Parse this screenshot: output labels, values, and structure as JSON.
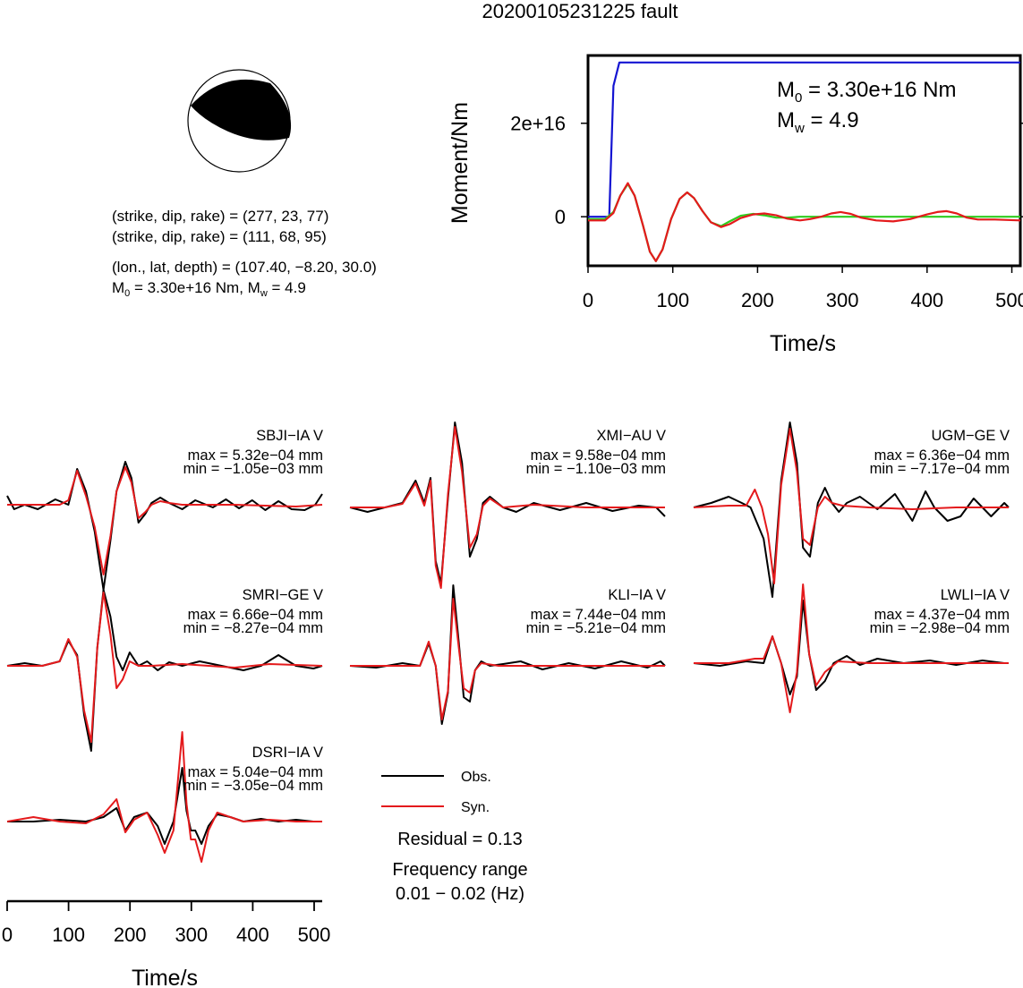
{
  "title": "20200105231225 fault",
  "source_params": {
    "nodal_plane_1": "(strike, dip, rake) = (277, 23, 77)",
    "nodal_plane_2": "(strike, dip, rake) = (111, 68, 95)",
    "location": "(lon., lat, depth) = (107.40, −8.20, 30.0)",
    "magnitude_prefix": "M",
    "magnitude_middle": " = 3.30e+16 Nm, M",
    "magnitude_suffix": " = 4.9",
    "sub_0": "0",
    "sub_w": "w"
  },
  "moment_panel": {
    "m0_text": " = 3.30e+16 Nm",
    "mw_text": " = 4.9",
    "m_letter": "M",
    "sub_0": "0",
    "sub_w": "w"
  },
  "colors": {
    "observed": "#000000",
    "synthetic": "#e41a1c",
    "moment_function": "#1414d2",
    "source_time_function": "#2ecc1e"
  },
  "chart_data": [
    {
      "type": "line",
      "name": "moment-rate-panel",
      "ylabel": "Moment/Nm",
      "xlabel": "Time/s",
      "xlim": [
        0,
        510
      ],
      "ylim": [
        -1.05e+16,
        3.45e+16
      ],
      "xticks": [
        0,
        100,
        200,
        300,
        400,
        500
      ],
      "yticks": [
        {
          "value": 0,
          "label": "0"
        },
        {
          "value": 2e+16,
          "label": "2e+16"
        }
      ],
      "series": [
        {
          "color": "#1414d2",
          "x": [
            0,
            25,
            30,
            37,
            40,
            510
          ],
          "y": [
            0,
            0,
            2.8e+16,
            3.3e+16,
            3.3e+16,
            3.3e+16
          ]
        },
        {
          "color": "#2ecc1e",
          "x": [
            0,
            20,
            30,
            38,
            47,
            55,
            65,
            73,
            80,
            88,
            98,
            108,
            117,
            125,
            135,
            145,
            157,
            167,
            180,
            195,
            208,
            222,
            235,
            250,
            270,
            300,
            350,
            400,
            450,
            510
          ],
          "y": [
            -500000000000000.0,
            -500000000000000.0,
            1000000000000000.0,
            4500000000000000.0,
            7000000000000000.0,
            4500000000000000.0,
            -2000000000000000.0,
            -7500000000000000.0,
            -9500000000000000.0,
            -7000000000000000.0,
            -500000000000000.0,
            3800000000000000.0,
            5200000000000000.0,
            4000000000000000.0,
            1200000000000000.0,
            -1200000000000000.0,
            -2000000000000000.0,
            -1000000000000000.0,
            200000000000000.0,
            600000000000000.0,
            300000000000000.0,
            -200000000000000.0,
            -200000000000000.0,
            0.0,
            0.0,
            0.0,
            0.0,
            0.0,
            0.0,
            0.0
          ]
        },
        {
          "color": "#e41a1c",
          "x": [
            0,
            20,
            30,
            38,
            47,
            55,
            65,
            73,
            80,
            88,
            98,
            108,
            117,
            125,
            135,
            145,
            157,
            167,
            180,
            195,
            208,
            222,
            235,
            250,
            262,
            275,
            287,
            298,
            310,
            322,
            340,
            360,
            380,
            400,
            412,
            423,
            435,
            447,
            460,
            480,
            510
          ],
          "y": [
            -800000000000000.0,
            -800000000000000.0,
            800000000000000.0,
            4500000000000000.0,
            7200000000000000.0,
            4500000000000000.0,
            -2000000000000000.0,
            -7500000000000000.0,
            -9500000000000000.0,
            -7000000000000000.0,
            -500000000000000.0,
            3800000000000000.0,
            5200000000000000.0,
            4000000000000000.0,
            1200000000000000.0,
            -1200000000000000.0,
            -2200000000000000.0,
            -1600000000000000.0,
            -300000000000000.0,
            500000000000000.0,
            700000000000000.0,
            300000000000000.0,
            -400000000000000.0,
            -800000000000000.0,
            -500000000000000.0,
            0.0,
            700000000000000.0,
            1000000000000000.0,
            600000000000000.0,
            -200000000000000.0,
            -800000000000000.0,
            -1000000000000000.0,
            -500000000000000.0,
            500000000000000.0,
            1000000000000000.0,
            1200000000000000.0,
            700000000000000.0,
            -200000000000000.0,
            -600000000000000.0,
            -600000000000000.0,
            -800000000000000.0
          ]
        }
      ]
    },
    {
      "type": "line",
      "name": "waveform-panels",
      "xlabel": "Time/s",
      "xlim": [
        0,
        512
      ],
      "xticks": [
        0,
        100,
        200,
        300,
        400,
        500
      ],
      "series_names": [
        "Obs.",
        "Syn."
      ],
      "stations": [
        {
          "name": "SBJI−IA V",
          "max": "max = 5.32e−04 mm",
          "min": "min = −1.05e−03 mm",
          "obs_x": [
            0,
            8,
            20,
            35,
            55,
            70,
            80,
            90,
            100,
            110,
            118,
            125,
            135,
            142,
            150,
            158,
            165,
            175,
            185,
            200,
            215,
            235,
            250,
            265,
            280,
            295,
            310,
            325,
            340,
            352,
            360
          ],
          "obs_y": [
            0.1,
            -0.05,
            0.0,
            -0.05,
            0.06,
            0.0,
            0.4,
            0.15,
            -0.3,
            -0.95,
            -0.4,
            0.15,
            0.48,
            0.3,
            -0.2,
            -0.1,
            0.02,
            0.08,
            0.02,
            -0.05,
            0.05,
            -0.03,
            0.06,
            -0.04,
            0.05,
            -0.06,
            0.04,
            -0.05,
            -0.06,
            0.0,
            0.12
          ],
          "syn_x": [
            0,
            60,
            70,
            80,
            90,
            100,
            110,
            118,
            125,
            135,
            142,
            150,
            158,
            165,
            175,
            185,
            200,
            260,
            330,
            360
          ],
          "syn_y": [
            0.0,
            0.0,
            0.05,
            0.38,
            0.1,
            -0.25,
            -0.78,
            -0.35,
            0.15,
            0.42,
            0.25,
            -0.15,
            -0.08,
            0.0,
            0.04,
            0.02,
            0.0,
            0.0,
            -0.02,
            0.0
          ]
        },
        {
          "name": "XMI−AU V",
          "max": "max = 9.58e−04 mm",
          "min": "min = −1.10e−03 mm",
          "obs_x": [
            0,
            20,
            40,
            60,
            75,
            85,
            92,
            98,
            104,
            112,
            120,
            128,
            137,
            145,
            152,
            160,
            175,
            190,
            210,
            240,
            270,
            300,
            330,
            350,
            360
          ],
          "obs_y": [
            0.0,
            -0.05,
            0.0,
            0.05,
            0.3,
            0.05,
            0.33,
            -0.6,
            -0.85,
            0.1,
            0.95,
            0.5,
            -0.55,
            -0.35,
            0.05,
            0.12,
            0.0,
            -0.05,
            0.05,
            -0.03,
            0.05,
            -0.04,
            0.02,
            0.0,
            -0.1
          ],
          "syn_x": [
            0,
            40,
            60,
            75,
            85,
            92,
            98,
            104,
            112,
            120,
            128,
            137,
            145,
            152,
            160,
            175,
            210,
            270,
            360
          ],
          "syn_y": [
            0.0,
            0.0,
            0.04,
            0.27,
            0.02,
            0.3,
            -0.65,
            -0.9,
            0.15,
            0.9,
            0.4,
            -0.45,
            -0.3,
            0.02,
            0.1,
            0.0,
            0.03,
            0.0,
            0.0
          ]
        },
        {
          "name": "UGM−GE V",
          "max": "max = 6.36e−04 mm",
          "min": "min = −7.17e−04 mm",
          "obs_x": [
            0,
            20,
            40,
            55,
            65,
            80,
            90,
            100,
            110,
            118,
            125,
            133,
            142,
            150,
            158,
            166,
            175,
            190,
            210,
            230,
            250,
            265,
            275,
            290,
            305,
            320,
            340,
            355,
            360
          ],
          "obs_y": [
            0.0,
            0.05,
            0.12,
            0.05,
            0.0,
            -0.35,
            -1.0,
            0.3,
            0.95,
            0.5,
            -0.45,
            -0.55,
            0.05,
            0.22,
            0.05,
            -0.05,
            0.05,
            0.12,
            -0.02,
            0.15,
            -0.15,
            0.18,
            0.0,
            -0.15,
            -0.1,
            0.1,
            -0.1,
            0.05,
            0.0
          ],
          "syn_x": [
            0,
            40,
            60,
            70,
            78,
            85,
            92,
            100,
            110,
            118,
            125,
            133,
            142,
            150,
            158,
            170,
            200,
            250,
            300,
            360
          ],
          "syn_y": [
            0.0,
            0.02,
            0.02,
            0.2,
            0.0,
            -0.3,
            -0.85,
            0.25,
            0.88,
            0.4,
            -0.35,
            -0.42,
            0.0,
            0.12,
            0.05,
            0.02,
            0.0,
            -0.02,
            0.0,
            0.0
          ]
        },
        {
          "name": "SMRI−GE V",
          "max": "max = 6.66e−04 mm",
          "min": "min = −8.27e−04 mm",
          "obs_x": [
            0,
            20,
            40,
            60,
            70,
            80,
            88,
            96,
            103,
            110,
            118,
            125,
            132,
            140,
            150,
            160,
            172,
            185,
            200,
            220,
            245,
            270,
            290,
            310,
            330,
            350,
            360
          ],
          "obs_y": [
            0.0,
            0.03,
            0.0,
            0.05,
            0.28,
            0.12,
            -0.55,
            -0.95,
            0.2,
            0.85,
            0.55,
            0.1,
            -0.05,
            0.15,
            0.0,
            0.05,
            -0.05,
            0.04,
            0.0,
            0.05,
            0.0,
            -0.05,
            0.0,
            0.12,
            0.0,
            -0.03,
            0.0
          ],
          "syn_x": [
            0,
            40,
            60,
            70,
            80,
            88,
            96,
            103,
            110,
            118,
            125,
            132,
            140,
            150,
            165,
            200,
            260,
            300,
            360
          ],
          "syn_y": [
            0.0,
            0.0,
            0.05,
            0.3,
            0.1,
            -0.5,
            -0.85,
            0.2,
            0.82,
            0.35,
            -0.25,
            -0.15,
            0.05,
            0.0,
            0.0,
            0.02,
            -0.02,
            0.02,
            0.0
          ]
        },
        {
          "name": "KLI−IA V",
          "max": "max = 7.44e−04 mm",
          "min": "min = −5.21e−04 mm",
          "obs_x": [
            0,
            30,
            60,
            80,
            90,
            98,
            105,
            112,
            118,
            125,
            130,
            137,
            143,
            150,
            160,
            175,
            195,
            220,
            250,
            280,
            310,
            340,
            355,
            360
          ],
          "obs_y": [
            0.0,
            -0.02,
            0.03,
            0.0,
            0.25,
            0.0,
            -0.65,
            -0.3,
            0.9,
            0.2,
            -0.35,
            -0.4,
            -0.05,
            0.05,
            0.0,
            0.02,
            0.05,
            -0.04,
            0.03,
            -0.03,
            0.05,
            -0.02,
            0.05,
            0.0
          ],
          "syn_x": [
            0,
            60,
            80,
            90,
            98,
            105,
            112,
            118,
            125,
            130,
            137,
            143,
            150,
            170,
            220,
            280,
            360
          ],
          "syn_y": [
            0.0,
            0.0,
            0.0,
            0.27,
            0.0,
            -0.6,
            -0.28,
            0.75,
            0.15,
            -0.25,
            -0.3,
            -0.05,
            0.03,
            0.0,
            0.0,
            0.0,
            0.0
          ]
        },
        {
          "name": "LWLI−IA V",
          "max": "max = 4.37e−04 mm",
          "min": "min = −2.98e−04 mm",
          "obs_x": [
            0,
            30,
            60,
            80,
            90,
            100,
            110,
            118,
            125,
            132,
            140,
            150,
            160,
            175,
            190,
            210,
            240,
            270,
            300,
            330,
            355,
            360
          ],
          "obs_y": [
            0.0,
            -0.03,
            0.02,
            0.0,
            0.3,
            0.0,
            -0.35,
            -0.15,
            0.7,
            0.1,
            -0.3,
            -0.2,
            0.0,
            0.08,
            -0.02,
            0.05,
            0.0,
            0.03,
            -0.02,
            0.03,
            0.0,
            0.0
          ],
          "syn_x": [
            0,
            40,
            70,
            80,
            90,
            100,
            110,
            118,
            125,
            132,
            140,
            150,
            165,
            200,
            260,
            320,
            360
          ],
          "syn_y": [
            0.0,
            0.0,
            0.05,
            0.05,
            0.3,
            0.0,
            -0.55,
            -0.1,
            0.88,
            0.1,
            -0.25,
            -0.1,
            0.02,
            0.0,
            0.0,
            0.0,
            0.0
          ]
        },
        {
          "name": "DSRI−IA V",
          "max": "max = 5.04e−04 mm",
          "min": "min = −3.05e−04 mm",
          "obs_x": [
            0,
            30,
            60,
            90,
            110,
            125,
            135,
            145,
            160,
            172,
            180,
            190,
            200,
            205,
            210,
            215,
            222,
            230,
            240,
            255,
            270,
            290,
            310,
            330,
            350,
            360
          ],
          "obs_y": [
            0.0,
            0.0,
            0.02,
            0.0,
            0.05,
            0.15,
            -0.1,
            0.05,
            0.1,
            -0.05,
            -0.25,
            0.0,
            0.6,
            0.12,
            -0.1,
            -0.1,
            -0.25,
            -0.05,
            0.08,
            0.05,
            0.0,
            0.03,
            0.0,
            0.02,
            0.0,
            0.0
          ],
          "syn_x": [
            0,
            30,
            60,
            90,
            110,
            125,
            135,
            145,
            160,
            172,
            180,
            190,
            200,
            205,
            210,
            215,
            222,
            230,
            240,
            255,
            270,
            300,
            330,
            360
          ],
          "syn_y": [
            0.0,
            0.05,
            0.0,
            -0.02,
            0.08,
            0.25,
            -0.12,
            0.02,
            0.1,
            -0.15,
            -0.35,
            -0.1,
            1.0,
            0.2,
            -0.2,
            -0.2,
            -0.45,
            -0.1,
            0.1,
            0.05,
            0.0,
            0.02,
            0.0,
            0.0
          ]
        }
      ]
    }
  ],
  "legend": {
    "obs": "Obs.",
    "syn": "Syn."
  },
  "stats": {
    "residual": "Residual = 0.13",
    "freq_label": "Frequency range",
    "freq_value": "0.01 − 0.02 (Hz)"
  }
}
